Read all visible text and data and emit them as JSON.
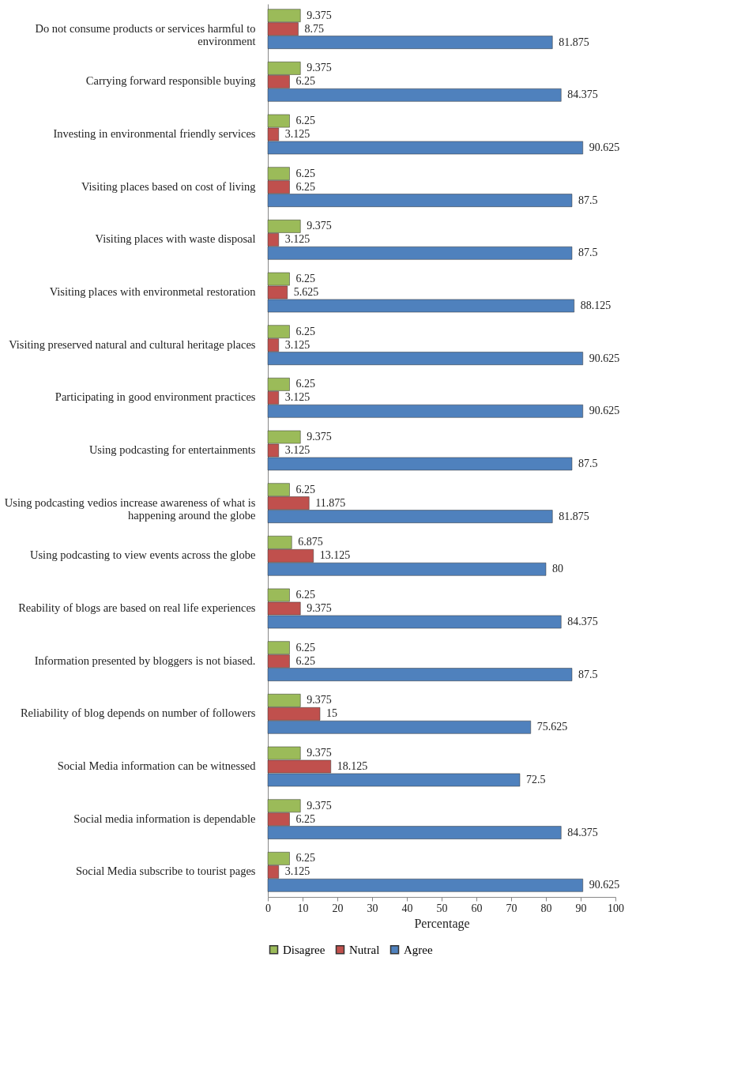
{
  "chart_data": {
    "type": "bar",
    "orientation": "horizontal",
    "xlabel": "Percentage",
    "categories": [
      "Do not consume products or services harmful to environment",
      "Carrying forward responsible buying",
      "Investing in environmental friendly services",
      "Visiting places based on cost of living",
      "Visiting places with waste disposal",
      "Visiting places with environmetal restoration",
      "Visiting preserved natural and cultural heritage places",
      "Participating in good environment practices",
      "Using podcasting for entertainments",
      "Using podcasting vedios increase awareness of what is happening around the globe",
      "Using podcasting to view events across the globe",
      "Reability of blogs are based on real life experiences",
      "Information presented by bloggers is not biased.",
      "Reliability of blog depends on number of followers",
      "Social Media information can be witnessed",
      "Social media information is dependable",
      "Social Media subscribe to tourist pages"
    ],
    "series": [
      {
        "name": "Disagree",
        "color": "#9bbb59",
        "values": [
          9.375,
          9.375,
          6.25,
          6.25,
          9.375,
          6.25,
          6.25,
          6.25,
          9.375,
          6.25,
          6.875,
          6.25,
          6.25,
          9.375,
          9.375,
          9.375,
          6.25
        ]
      },
      {
        "name": "Nutral",
        "color": "#c0504d",
        "values": [
          8.75,
          6.25,
          3.125,
          6.25,
          3.125,
          5.625,
          3.125,
          3.125,
          3.125,
          11.875,
          13.125,
          9.375,
          6.25,
          15,
          18.125,
          6.25,
          3.125
        ]
      },
      {
        "name": "Agree",
        "color": "#4f81bd",
        "values": [
          81.875,
          84.375,
          90.625,
          87.5,
          87.5,
          88.125,
          90.625,
          90.625,
          87.5,
          81.875,
          80,
          84.375,
          87.5,
          75.625,
          72.5,
          84.375,
          90.625
        ]
      }
    ],
    "xlim": [
      0,
      100
    ],
    "xticks": [
      0,
      10,
      20,
      30,
      40,
      50,
      60,
      70,
      80,
      90,
      100
    ],
    "grid": false,
    "legend": "bottom",
    "data_labels": true
  }
}
